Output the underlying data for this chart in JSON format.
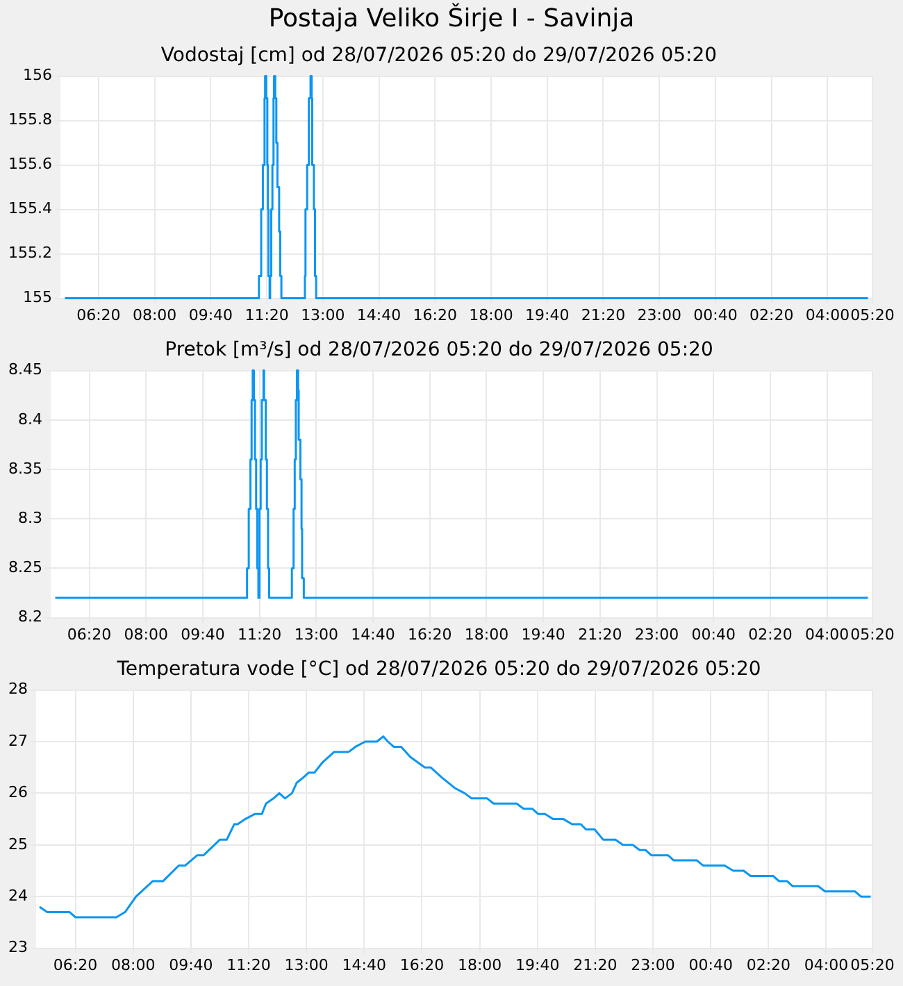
{
  "chart_data": [
    {
      "type": "step",
      "title": "Postaja Veliko Širje I - Savinja",
      "subtitle": "Vodostaj [cm] od 28/07/2026 05:20 do 29/07/2026 05:20",
      "color": "#0a96f2",
      "grid": true,
      "x": [
        "2026-07-28T05:20",
        "2026-07-28T11:06",
        "2026-07-28T11:10",
        "2026-07-28T11:13",
        "2026-07-28T11:16",
        "2026-07-28T11:17",
        "2026-07-28T11:19",
        "2026-07-28T11:21",
        "2026-07-28T11:22",
        "2026-07-28T11:23",
        "2026-07-28T11:25",
        "2026-07-28T11:26",
        "2026-07-28T11:28",
        "2026-07-28T11:30",
        "2026-07-28T11:32",
        "2026-07-28T11:33",
        "2026-07-28T11:35",
        "2026-07-28T11:37",
        "2026-07-28T11:39",
        "2026-07-28T11:42",
        "2026-07-28T11:44",
        "2026-07-28T11:46",
        "2026-07-28T12:28",
        "2026-07-28T12:29",
        "2026-07-28T12:32",
        "2026-07-28T12:35",
        "2026-07-28T12:38",
        "2026-07-28T12:40",
        "2026-07-28T12:41",
        "2026-07-28T12:44",
        "2026-07-28T12:46",
        "2026-07-28T12:48",
        "2026-07-29T05:12"
      ],
      "values": [
        155,
        155.1,
        155.4,
        155.6,
        155.9,
        156,
        155.9,
        155.6,
        155.4,
        155.1,
        155,
        155.1,
        155.4,
        155.6,
        155.9,
        156,
        155.9,
        155.7,
        155.5,
        155.3,
        155.1,
        155,
        155.1,
        155.4,
        155.6,
        155.9,
        156,
        155.9,
        155.6,
        155.4,
        155.1,
        155,
        155
      ],
      "xlim": [
        "2026-07-28T05:12",
        "2026-07-29T05:20"
      ],
      "xticks": [
        {
          "value": "2026-07-28T06:20",
          "label": "06:20"
        },
        {
          "value": "2026-07-28T08:00",
          "label": "08:00"
        },
        {
          "value": "2026-07-28T09:40",
          "label": "09:40"
        },
        {
          "value": "2026-07-28T11:20",
          "label": "11:20"
        },
        {
          "value": "2026-07-28T13:00",
          "label": "13:00"
        },
        {
          "value": "2026-07-28T14:40",
          "label": "14:40"
        },
        {
          "value": "2026-07-28T16:20",
          "label": "16:20"
        },
        {
          "value": "2026-07-28T18:00",
          "label": "18:00"
        },
        {
          "value": "2026-07-28T19:40",
          "label": "19:40"
        },
        {
          "value": "2026-07-28T21:20",
          "label": "21:20"
        },
        {
          "value": "2026-07-28T23:00",
          "label": "23:00"
        },
        {
          "value": "2026-07-29T00:40",
          "label": "00:40"
        },
        {
          "value": "2026-07-29T02:20",
          "label": "02:20"
        },
        {
          "value": "2026-07-29T04:00",
          "label": "04:00"
        },
        {
          "value": "2026-07-29T05:20",
          "label": "05:20"
        }
      ],
      "ylim": [
        155,
        156
      ],
      "yticks": [
        155,
        155.2,
        155.4,
        155.6,
        155.8,
        156
      ]
    },
    {
      "type": "step",
      "title": "Pretok [m³/s] od 28/07/2026 05:20 do 29/07/2026 05:20",
      "color": "#0a96f2",
      "grid": true,
      "x": [
        "2026-07-28T05:20",
        "2026-07-28T10:58",
        "2026-07-28T11:01",
        "2026-07-28T11:04",
        "2026-07-28T11:06",
        "2026-07-28T11:08",
        "2026-07-28T11:10",
        "2026-07-28T11:12",
        "2026-07-28T11:14",
        "2026-07-28T11:16",
        "2026-07-28T11:18",
        "2026-07-28T11:20",
        "2026-07-28T11:22",
        "2026-07-28T11:24",
        "2026-07-28T11:27",
        "2026-07-28T11:28",
        "2026-07-28T11:31",
        "2026-07-28T11:33",
        "2026-07-28T11:35",
        "2026-07-28T11:37",
        "2026-07-28T12:17",
        "2026-07-28T12:20",
        "2026-07-28T12:22",
        "2026-07-28T12:24",
        "2026-07-28T12:26",
        "2026-07-28T12:28",
        "2026-07-28T12:29",
        "2026-07-28T12:32",
        "2026-07-28T12:34",
        "2026-07-28T12:35",
        "2026-07-28T12:38",
        "2026-07-29T05:12"
      ],
      "values": [
        8.22,
        8.25,
        8.31,
        8.36,
        8.42,
        8.45,
        8.42,
        8.36,
        8.31,
        8.25,
        8.22,
        8.31,
        8.36,
        8.42,
        8.45,
        8.42,
        8.36,
        8.31,
        8.25,
        8.22,
        8.25,
        8.31,
        8.36,
        8.42,
        8.45,
        8.43,
        8.38,
        8.34,
        8.29,
        8.24,
        8.22,
        8.22
      ],
      "xlim": [
        "2026-07-28T05:12",
        "2026-07-29T05:20"
      ],
      "xticks": [
        {
          "value": "2026-07-28T06:20",
          "label": "06:20"
        },
        {
          "value": "2026-07-28T08:00",
          "label": "08:00"
        },
        {
          "value": "2026-07-28T09:40",
          "label": "09:40"
        },
        {
          "value": "2026-07-28T11:20",
          "label": "11:20"
        },
        {
          "value": "2026-07-28T13:00",
          "label": "13:00"
        },
        {
          "value": "2026-07-28T14:40",
          "label": "14:40"
        },
        {
          "value": "2026-07-28T16:20",
          "label": "16:20"
        },
        {
          "value": "2026-07-28T18:00",
          "label": "18:00"
        },
        {
          "value": "2026-07-28T19:40",
          "label": "19:40"
        },
        {
          "value": "2026-07-28T21:20",
          "label": "21:20"
        },
        {
          "value": "2026-07-28T23:00",
          "label": "23:00"
        },
        {
          "value": "2026-07-29T00:40",
          "label": "00:40"
        },
        {
          "value": "2026-07-29T02:20",
          "label": "02:20"
        },
        {
          "value": "2026-07-29T04:00",
          "label": "04:00"
        },
        {
          "value": "2026-07-29T05:20",
          "label": "05:20"
        }
      ],
      "ylim": [
        8.2,
        8.45
      ],
      "yticks": [
        8.2,
        8.25,
        8.3,
        8.35,
        8.4,
        8.45
      ]
    },
    {
      "type": "line",
      "title": "Temperatura vode [°C] od 28/07/2026 05:20 do 29/07/2026 05:20",
      "color": "#0a96f2",
      "grid": true,
      "x": [
        "2026-07-28T05:18",
        "2026-07-28T05:31",
        "2026-07-28T06:10",
        "2026-07-28T06:20",
        "2026-07-28T07:31",
        "2026-07-28T07:46",
        "2026-07-28T08:05",
        "2026-07-28T08:34",
        "2026-07-28T08:52",
        "2026-07-28T09:19",
        "2026-07-28T09:30",
        "2026-07-28T09:51",
        "2026-07-28T10:02",
        "2026-07-28T10:30",
        "2026-07-28T10:42",
        "2026-07-28T10:55",
        "2026-07-28T11:01",
        "2026-07-28T11:14",
        "2026-07-28T11:31",
        "2026-07-28T11:43",
        "2026-07-28T11:50",
        "2026-07-28T12:03",
        "2026-07-28T12:13",
        "2026-07-28T12:23",
        "2026-07-28T12:35",
        "2026-07-28T12:43",
        "2026-07-28T12:54",
        "2026-07-28T13:04",
        "2026-07-28T13:14",
        "2026-07-28T13:28",
        "2026-07-28T13:48",
        "2026-07-28T14:13",
        "2026-07-28T14:25",
        "2026-07-28T14:42",
        "2026-07-28T15:02",
        "2026-07-28T15:13",
        "2026-07-28T15:21",
        "2026-07-28T15:31",
        "2026-07-28T15:44",
        "2026-07-28T16:00",
        "2026-07-28T16:25",
        "2026-07-28T16:35",
        "2026-07-28T16:55",
        "2026-07-28T17:17",
        "2026-07-28T17:34",
        "2026-07-28T17:46",
        "2026-07-28T18:13",
        "2026-07-28T18:24",
        "2026-07-28T19:04",
        "2026-07-28T19:16",
        "2026-07-28T19:31",
        "2026-07-28T19:41",
        "2026-07-28T19:53",
        "2026-07-28T20:07",
        "2026-07-28T20:25",
        "2026-07-28T20:40",
        "2026-07-28T20:55",
        "2026-07-28T21:04",
        "2026-07-28T21:19",
        "2026-07-28T21:34",
        "2026-07-28T21:55",
        "2026-07-28T22:08",
        "2026-07-28T22:25",
        "2026-07-28T22:37",
        "2026-07-28T22:47",
        "2026-07-28T22:57",
        "2026-07-28T23:26",
        "2026-07-28T23:36",
        "2026-07-29T00:16",
        "2026-07-29T00:27",
        "2026-07-29T01:04",
        "2026-07-29T01:19",
        "2026-07-29T01:37",
        "2026-07-29T01:49",
        "2026-07-29T02:28",
        "2026-07-29T02:38",
        "2026-07-29T02:52",
        "2026-07-29T03:02",
        "2026-07-29T03:46",
        "2026-07-29T03:58",
        "2026-07-29T04:50",
        "2026-07-29T05:00",
        "2026-07-29T05:17"
      ],
      "values": [
        23.8,
        23.7,
        23.7,
        23.6,
        23.6,
        23.7,
        24.0,
        24.3,
        24.3,
        24.6,
        24.6,
        24.8,
        24.8,
        25.1,
        25.1,
        25.4,
        25.4,
        25.5,
        25.6,
        25.6,
        25.8,
        25.9,
        26.0,
        25.9,
        26.0,
        26.2,
        26.3,
        26.4,
        26.4,
        26.6,
        26.8,
        26.8,
        26.9,
        27.0,
        27.0,
        27.1,
        27.0,
        26.9,
        26.9,
        26.7,
        26.5,
        26.5,
        26.3,
        26.1,
        26.0,
        25.9,
        25.9,
        25.8,
        25.8,
        25.7,
        25.7,
        25.6,
        25.6,
        25.5,
        25.5,
        25.4,
        25.4,
        25.3,
        25.3,
        25.1,
        25.1,
        25.0,
        25.0,
        24.9,
        24.9,
        24.8,
        24.8,
        24.7,
        24.7,
        24.6,
        24.6,
        24.5,
        24.5,
        24.4,
        24.4,
        24.3,
        24.3,
        24.2,
        24.2,
        24.1,
        24.1,
        24.0,
        24.0
      ],
      "xlim": [
        "2026-07-28T05:12",
        "2026-07-29T05:20"
      ],
      "xticks": [
        {
          "value": "2026-07-28T06:20",
          "label": "06:20"
        },
        {
          "value": "2026-07-28T08:00",
          "label": "08:00"
        },
        {
          "value": "2026-07-28T09:40",
          "label": "09:40"
        },
        {
          "value": "2026-07-28T11:20",
          "label": "11:20"
        },
        {
          "value": "2026-07-28T13:00",
          "label": "13:00"
        },
        {
          "value": "2026-07-28T14:40",
          "label": "14:40"
        },
        {
          "value": "2026-07-28T16:20",
          "label": "16:20"
        },
        {
          "value": "2026-07-28T18:00",
          "label": "18:00"
        },
        {
          "value": "2026-07-28T19:40",
          "label": "19:40"
        },
        {
          "value": "2026-07-28T21:20",
          "label": "21:20"
        },
        {
          "value": "2026-07-28T23:00",
          "label": "23:00"
        },
        {
          "value": "2026-07-29T00:40",
          "label": "00:40"
        },
        {
          "value": "2026-07-29T02:20",
          "label": "02:20"
        },
        {
          "value": "2026-07-29T04:00",
          "label": "04:00"
        },
        {
          "value": "2026-07-29T05:20",
          "label": "05:20"
        }
      ],
      "ylim": [
        23,
        28
      ],
      "yticks": [
        23,
        24,
        25,
        26,
        27,
        28
      ]
    }
  ]
}
